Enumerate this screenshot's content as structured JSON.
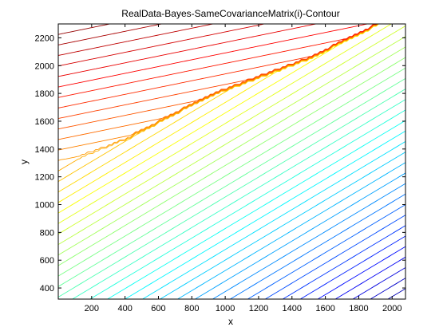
{
  "chart_data": {
    "type": "contour",
    "title": "RealData-Bayes-SameCovarianceMatrix(i)-Contour",
    "xlabel": "x",
    "ylabel": "y",
    "xlim": [
      0,
      2080
    ],
    "ylim": [
      320,
      2300
    ],
    "xticks": [
      200,
      400,
      600,
      800,
      1000,
      1200,
      1400,
      1600,
      1800,
      2000
    ],
    "yticks": [
      400,
      600,
      800,
      1000,
      1200,
      1400,
      1600,
      1800,
      2000,
      2200
    ],
    "colormap": "jet",
    "grid": false,
    "level_count": 45,
    "kink_line": [
      [
        80,
        1320
      ],
      [
        400,
        1470
      ],
      [
        900,
        1780
      ],
      [
        1500,
        2050
      ],
      [
        1900,
        2290
      ]
    ],
    "gradient_upper_region": [
      -0.245,
      1.0
    ],
    "gradient_lower_region": [
      -0.72,
      1.0
    ]
  }
}
